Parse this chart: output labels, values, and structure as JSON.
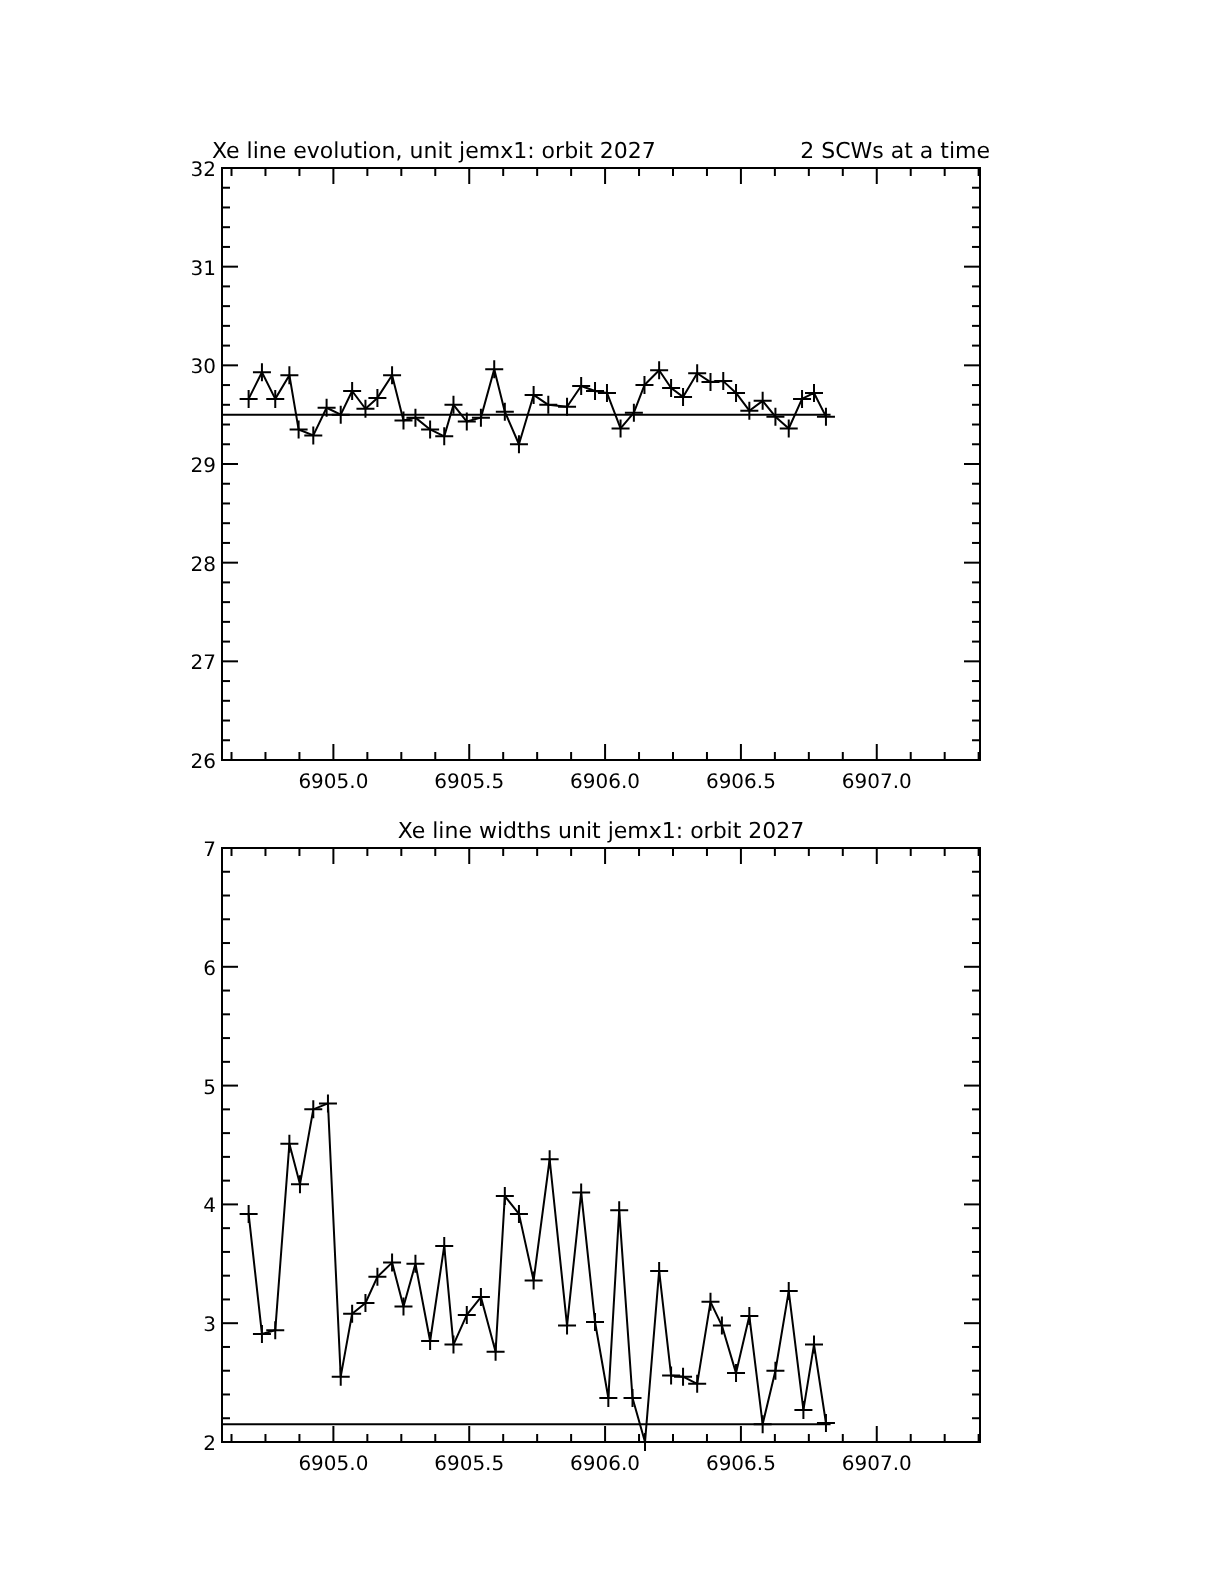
{
  "chart_data": [
    {
      "type": "line",
      "title": "Xe line evolution, unit jemx1: orbit 2027",
      "subtitle": "2 SCWs at a time",
      "marker": "cross",
      "xlim": [
        6904.59,
        6907.38
      ],
      "ylim": [
        26,
        32
      ],
      "xticks": [
        {
          "value": 6904.625,
          "label": null
        },
        {
          "value": 6904.75,
          "label": null
        },
        {
          "value": 6904.875,
          "label": null
        },
        {
          "value": 6905,
          "label": "6905.0"
        },
        {
          "value": 6905.125,
          "label": null
        },
        {
          "value": 6905.25,
          "label": null
        },
        {
          "value": 6905.375,
          "label": null
        },
        {
          "value": 6905.5,
          "label": "6905.5"
        },
        {
          "value": 6905.625,
          "label": null
        },
        {
          "value": 6905.75,
          "label": null
        },
        {
          "value": 6905.875,
          "label": null
        },
        {
          "value": 6906,
          "label": "6906.0"
        },
        {
          "value": 6906.125,
          "label": null
        },
        {
          "value": 6906.25,
          "label": null
        },
        {
          "value": 6906.375,
          "label": null
        },
        {
          "value": 6906.5,
          "label": "6906.5"
        },
        {
          "value": 6906.625,
          "label": null
        },
        {
          "value": 6906.75,
          "label": null
        },
        {
          "value": 6906.875,
          "label": null
        },
        {
          "value": 6907,
          "label": "6907.0"
        },
        {
          "value": 6907.125,
          "label": null
        },
        {
          "value": 6907.25,
          "label": null
        },
        {
          "value": 6907.375,
          "label": null
        }
      ],
      "yticks": [
        26,
        {
          "value": 26.2,
          "label": null
        },
        {
          "value": 26.4,
          "label": null
        },
        {
          "value": 26.6,
          "label": null
        },
        {
          "value": 26.8,
          "label": null
        },
        27,
        {
          "value": 27.2,
          "label": null
        },
        {
          "value": 27.4,
          "label": null
        },
        {
          "value": 27.6,
          "label": null
        },
        {
          "value": 27.8,
          "label": null
        },
        28,
        {
          "value": 28.2,
          "label": null
        },
        {
          "value": 28.4,
          "label": null
        },
        {
          "value": 28.6,
          "label": null
        },
        {
          "value": 28.8,
          "label": null
        },
        29,
        {
          "value": 29.2,
          "label": null
        },
        {
          "value": 29.4,
          "label": null
        },
        {
          "value": 29.6,
          "label": null
        },
        {
          "value": 29.8,
          "label": null
        },
        30,
        {
          "value": 30.2,
          "label": null
        },
        {
          "value": 30.4,
          "label": null
        },
        {
          "value": 30.6,
          "label": null
        },
        {
          "value": 30.8,
          "label": null
        },
        31,
        {
          "value": 31.2,
          "label": null
        },
        {
          "value": 31.4,
          "label": null
        },
        {
          "value": 31.6,
          "label": null
        },
        {
          "value": 31.8,
          "label": null
        },
        32
      ],
      "series": [
        {
          "color": "#000000",
          "x": [
            6904.688,
            6904.737,
            6904.786,
            6904.838,
            6904.872,
            6904.926,
            6904.975,
            6905.027,
            6905.069,
            6905.118,
            6905.162,
            6905.216,
            6905.258,
            6905.302,
            6905.356,
            6905.408,
            6905.442,
            6905.491,
            6905.543,
            6905.592,
            6905.631,
            6905.683,
            6905.737,
            6905.791,
            6905.86,
            6905.912,
            6905.963,
            6906.007,
            6906.057,
            6906.106,
            6906.145,
            6906.199,
            6906.243,
            6906.287,
            6906.339,
            6906.388,
            6906.435,
            6906.482,
            6906.531,
            6906.58,
            6906.627,
            6906.676,
            6906.725,
            6906.769,
            6906.813
          ],
          "values": [
            29.66,
            29.93,
            29.66,
            29.9,
            29.35,
            29.29,
            29.57,
            29.5,
            29.74,
            29.56,
            29.67,
            29.9,
            29.44,
            29.47,
            29.35,
            29.28,
            29.6,
            29.43,
            29.47,
            29.96,
            29.53,
            29.2,
            29.7,
            29.6,
            29.58,
            29.79,
            29.74,
            29.72,
            29.36,
            29.52,
            29.8,
            29.95,
            29.77,
            29.68,
            29.92,
            29.83,
            29.84,
            29.72,
            29.54,
            29.64,
            29.48,
            29.36,
            29.66,
            29.72,
            29.48
          ]
        },
        {
          "type": "line",
          "marker": "none",
          "color": "#000000",
          "x": [
            6904.59,
            6906.83
          ],
          "values": [
            29.5,
            29.5
          ]
        }
      ]
    },
    {
      "type": "line",
      "title": "Xe line widths unit jemx1: orbit 2027",
      "marker": "cross",
      "xlim": [
        6904.59,
        6907.38
      ],
      "ylim": [
        2,
        7
      ],
      "xticks": [
        {
          "value": 6904.625,
          "label": null
        },
        {
          "value": 6904.75,
          "label": null
        },
        {
          "value": 6904.875,
          "label": null
        },
        {
          "value": 6905,
          "label": "6905.0"
        },
        {
          "value": 6905.125,
          "label": null
        },
        {
          "value": 6905.25,
          "label": null
        },
        {
          "value": 6905.375,
          "label": null
        },
        {
          "value": 6905.5,
          "label": "6905.5"
        },
        {
          "value": 6905.625,
          "label": null
        },
        {
          "value": 6905.75,
          "label": null
        },
        {
          "value": 6905.875,
          "label": null
        },
        {
          "value": 6906,
          "label": "6906.0"
        },
        {
          "value": 6906.125,
          "label": null
        },
        {
          "value": 6906.25,
          "label": null
        },
        {
          "value": 6906.375,
          "label": null
        },
        {
          "value": 6906.5,
          "label": "6906.5"
        },
        {
          "value": 6906.625,
          "label": null
        },
        {
          "value": 6906.75,
          "label": null
        },
        {
          "value": 6906.875,
          "label": null
        },
        {
          "value": 6907,
          "label": "6907.0"
        },
        {
          "value": 6907.125,
          "label": null
        },
        {
          "value": 6907.25,
          "label": null
        },
        {
          "value": 6907.375,
          "label": null
        }
      ],
      "yticks": [
        2,
        {
          "value": 2.2,
          "label": null
        },
        {
          "value": 2.4,
          "label": null
        },
        {
          "value": 2.6,
          "label": null
        },
        {
          "value": 2.8,
          "label": null
        },
        3,
        {
          "value": 3.2,
          "label": null
        },
        {
          "value": 3.4,
          "label": null
        },
        {
          "value": 3.6,
          "label": null
        },
        {
          "value": 3.8,
          "label": null
        },
        4,
        {
          "value": 4.2,
          "label": null
        },
        {
          "value": 4.4,
          "label": null
        },
        {
          "value": 4.6,
          "label": null
        },
        {
          "value": 4.8,
          "label": null
        },
        5,
        {
          "value": 5.2,
          "label": null
        },
        {
          "value": 5.4,
          "label": null
        },
        {
          "value": 5.6,
          "label": null
        },
        {
          "value": 5.8,
          "label": null
        },
        6,
        {
          "value": 6.2,
          "label": null
        },
        {
          "value": 6.4,
          "label": null
        },
        {
          "value": 6.6,
          "label": null
        },
        {
          "value": 6.8,
          "label": null
        },
        7
      ],
      "series": [
        {
          "color": "#000000",
          "x": [
            6904.688,
            6904.737,
            6904.786,
            6904.838,
            6904.877,
            6904.926,
            6904.98,
            6905.027,
            6905.069,
            6905.118,
            6905.162,
            6905.216,
            6905.258,
            6905.302,
            6905.356,
            6905.408,
            6905.442,
            6905.491,
            6905.543,
            6905.597,
            6905.631,
            6905.683,
            6905.737,
            6905.796,
            6905.86,
            6905.912,
            6905.963,
            6906.012,
            6906.052,
            6906.101,
            6906.147,
            6906.199,
            6906.243,
            6906.287,
            6906.339,
            6906.388,
            6906.43,
            6906.482,
            6906.531,
            6906.58,
            6906.627,
            6906.676,
            6906.73,
            6906.769,
            6906.813
          ],
          "values": [
            3.92,
            2.91,
            2.94,
            4.51,
            4.17,
            4.8,
            4.85,
            2.55,
            3.08,
            3.17,
            3.39,
            3.51,
            3.14,
            3.5,
            2.85,
            3.65,
            2.82,
            3.07,
            3.22,
            2.76,
            4.07,
            3.92,
            3.36,
            4.38,
            2.98,
            4.1,
            3.01,
            2.37,
            3.95,
            2.37,
            2.0,
            3.44,
            2.56,
            2.55,
            2.49,
            3.18,
            2.98,
            2.58,
            3.06,
            2.15,
            2.6,
            3.27,
            2.27,
            2.82,
            2.16
          ]
        },
        {
          "type": "line",
          "marker": "none",
          "color": "#000000",
          "x": [
            6904.59,
            6906.83
          ],
          "values": [
            2.15,
            2.15
          ]
        }
      ]
    }
  ]
}
